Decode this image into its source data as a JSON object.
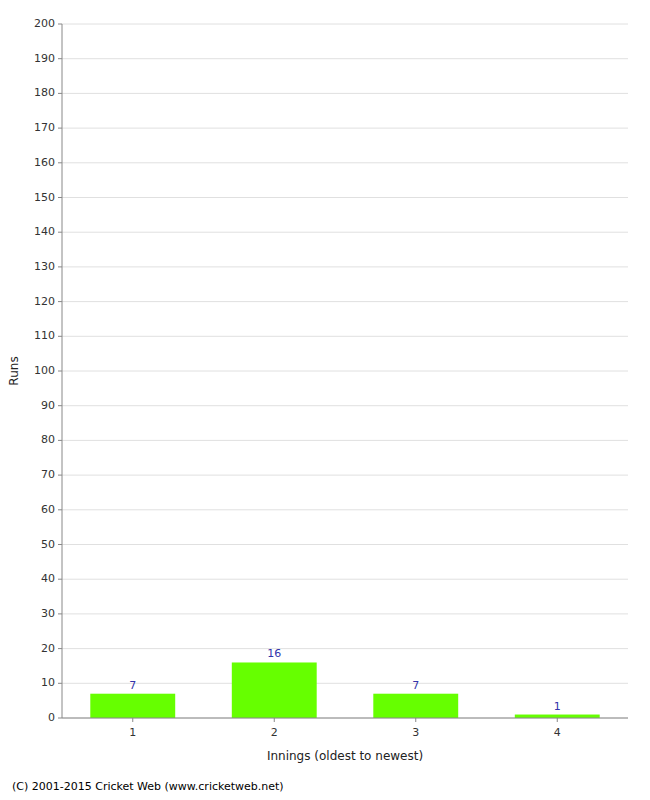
{
  "chart_data": {
    "type": "bar",
    "x": [
      1,
      2,
      3,
      4
    ],
    "values": [
      7,
      16,
      7,
      1
    ],
    "color": "#66ff00",
    "xlabel": "Innings (oldest to newest)",
    "ylabel": "Runs",
    "xlim": [
      0.5,
      4.5
    ],
    "xticks": [
      1,
      2,
      3,
      4
    ],
    "ylim": [
      0,
      200
    ],
    "yticks": [
      0,
      10,
      20,
      30,
      40,
      50,
      60,
      70,
      80,
      90,
      100,
      110,
      120,
      130,
      140,
      150,
      160,
      170,
      180,
      190,
      200
    ],
    "grid": true,
    "data_labels": true,
    "annotations": [
      "(C) 2001-2015 Cricket Web (www.cricketweb.net)"
    ]
  }
}
